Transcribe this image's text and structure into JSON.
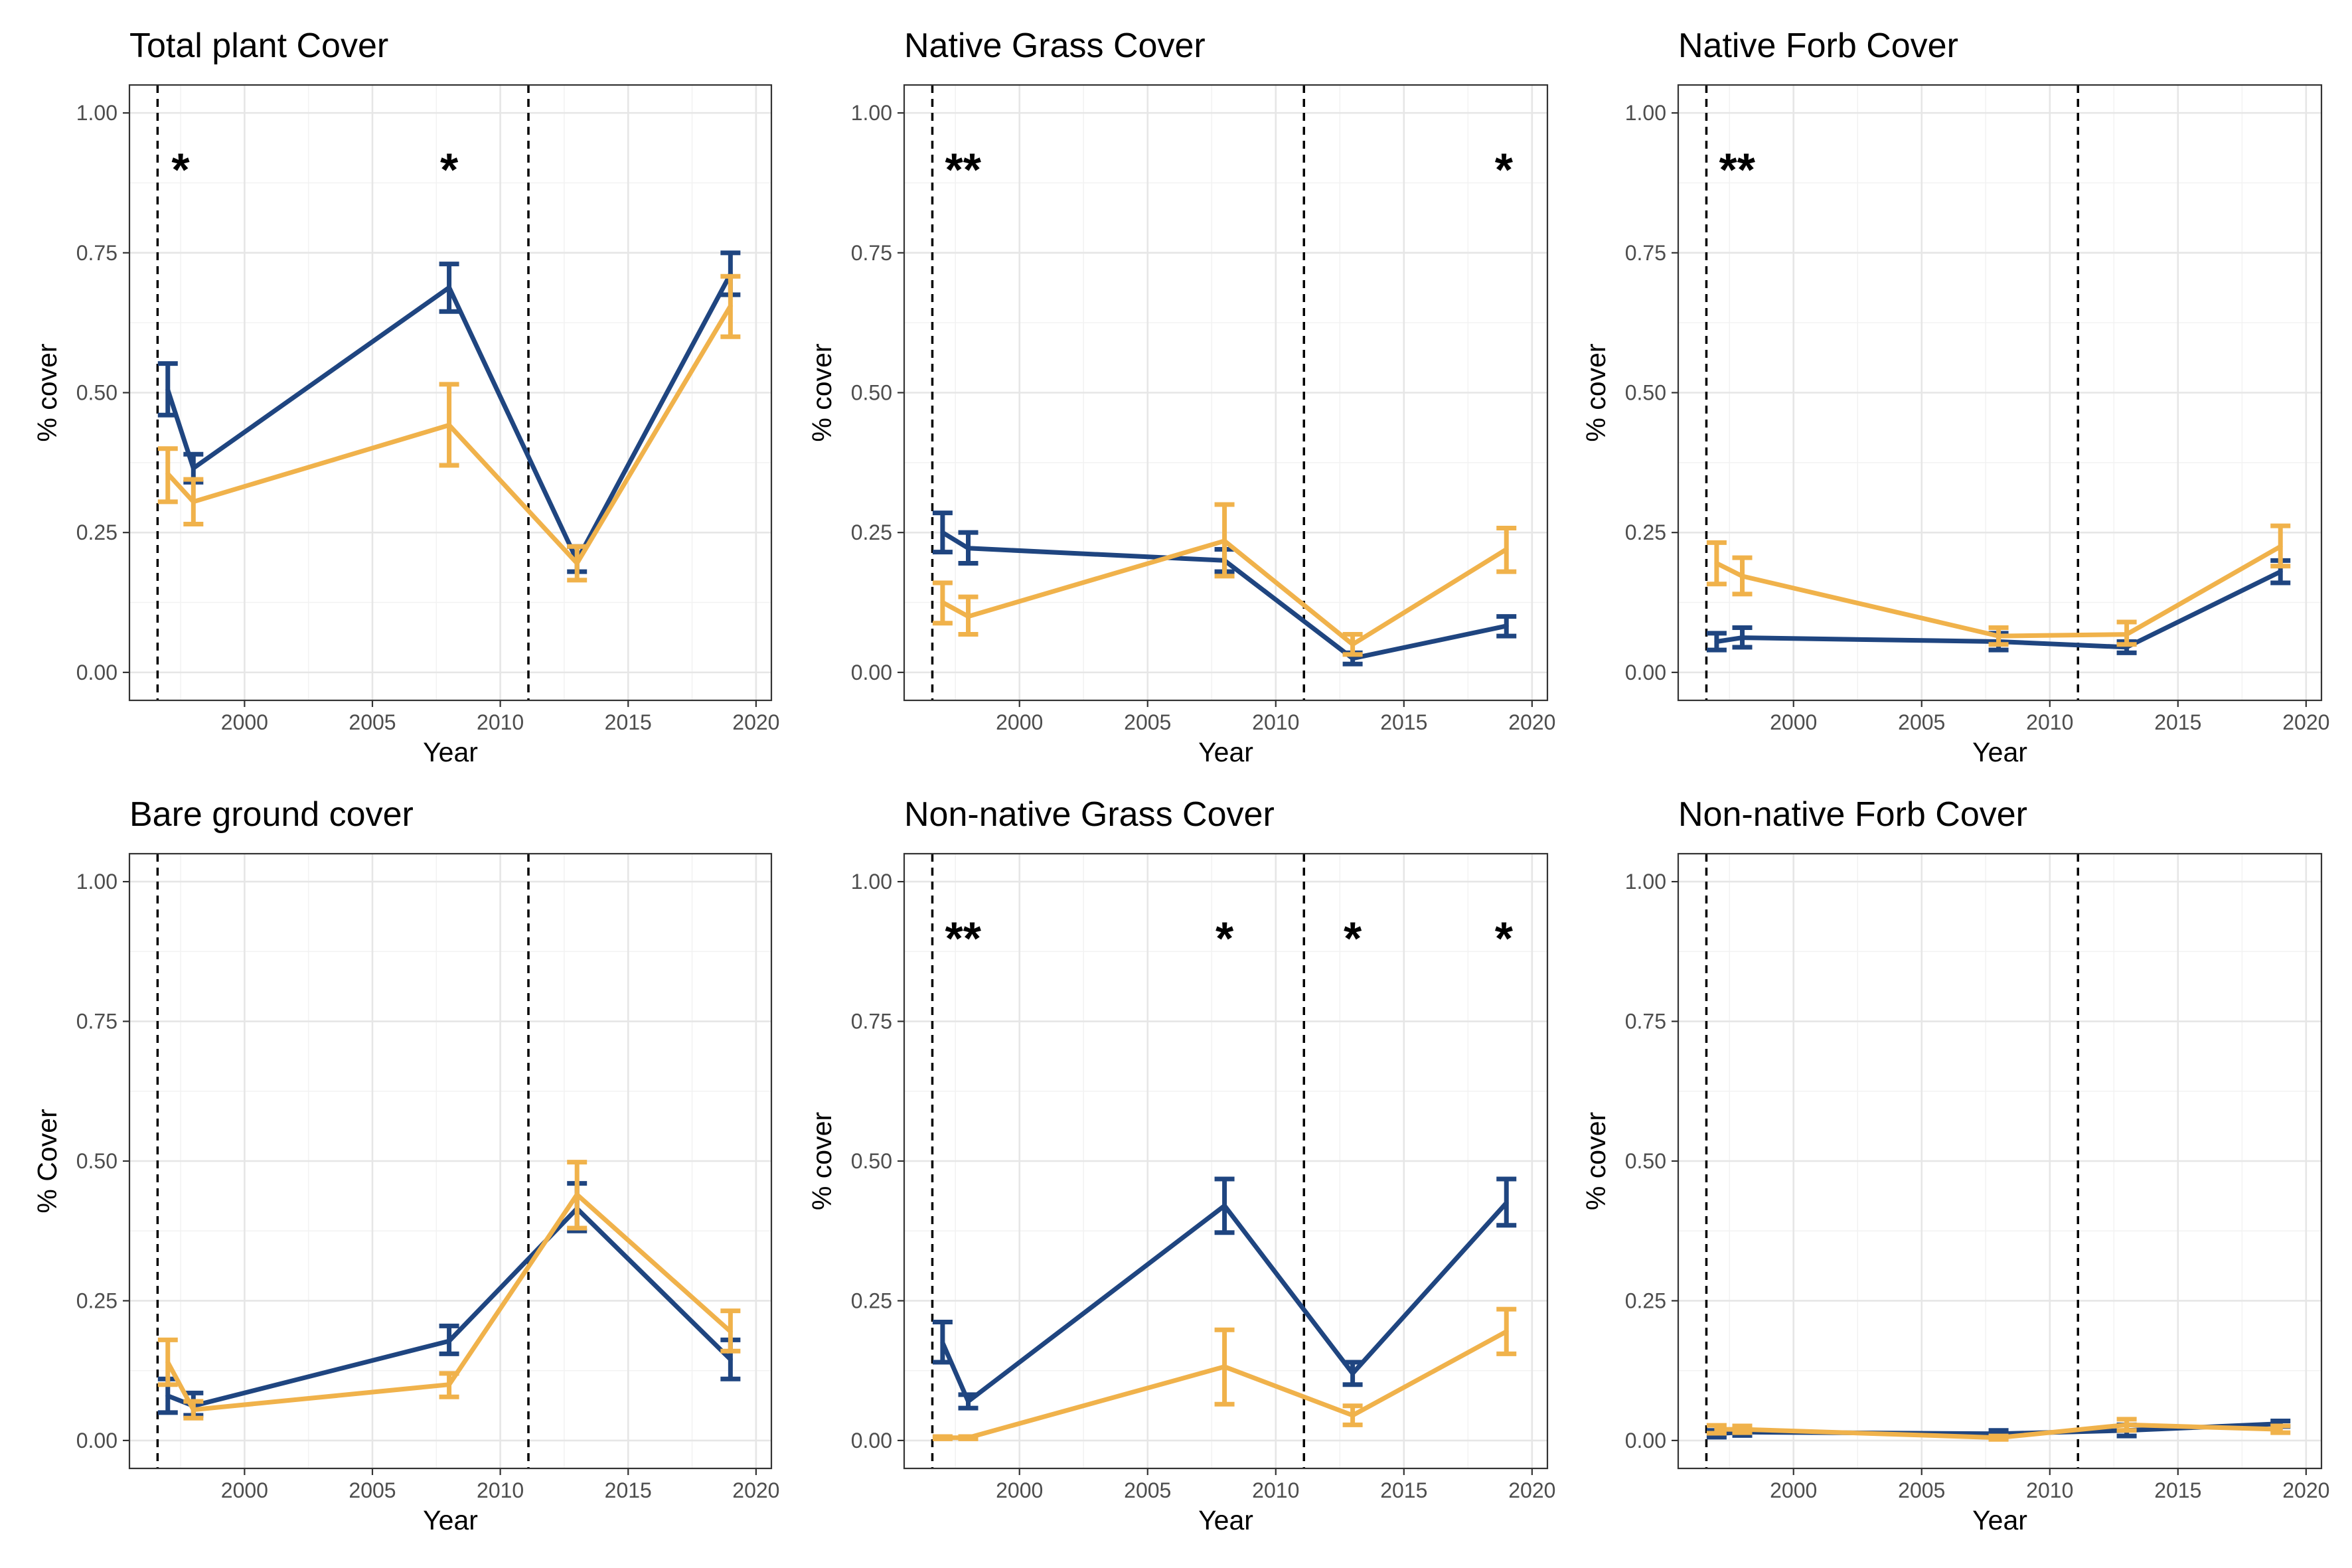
{
  "colors": {
    "blue": "#1f4580",
    "orange": "#f0b24b"
  },
  "chart_data": [
    {
      "type": "line",
      "title": "Total plant Cover",
      "xlabel": "Year",
      "ylabel": "% cover",
      "xlim": [
        1995.5,
        2020.6
      ],
      "ylim": [
        -0.05,
        1.05
      ],
      "xticks": [
        2000,
        2005,
        2010,
        2015,
        2020
      ],
      "yticks": [
        0.0,
        0.25,
        0.5,
        0.75,
        1.0
      ],
      "ytick_labels": [
        "0.00",
        "0.25",
        "0.50",
        "0.75",
        "1.00"
      ],
      "vlines": [
        1996.6,
        2011.1
      ],
      "annotations": [
        {
          "x": 1997.5,
          "text": "*"
        },
        {
          "x": 2008,
          "text": "*"
        }
      ],
      "x": [
        1997,
        1998,
        2008,
        2013,
        2019
      ],
      "series": [
        {
          "color": "#1f4580",
          "values": [
            0.505,
            0.365,
            0.688,
            0.2,
            0.712
          ],
          "lower": [
            0.46,
            0.34,
            0.645,
            0.18,
            0.675
          ],
          "upper": [
            0.552,
            0.39,
            0.73,
            0.225,
            0.75
          ]
        },
        {
          "color": "#f0b24b",
          "values": [
            0.355,
            0.305,
            0.442,
            0.195,
            0.655
          ],
          "lower": [
            0.305,
            0.265,
            0.37,
            0.165,
            0.6
          ],
          "upper": [
            0.4,
            0.345,
            0.515,
            0.225,
            0.708
          ]
        }
      ]
    },
    {
      "type": "line",
      "title": "Native Grass Cover",
      "xlabel": "Year",
      "ylabel": "% cover",
      "xlim": [
        1995.5,
        2020.6
      ],
      "ylim": [
        -0.05,
        1.05
      ],
      "xticks": [
        2000,
        2005,
        2010,
        2015,
        2020
      ],
      "yticks": [
        0.0,
        0.25,
        0.5,
        0.75,
        1.0
      ],
      "ytick_labels": [
        "0.00",
        "0.25",
        "0.50",
        "0.75",
        "1.00"
      ],
      "vlines": [
        1996.6,
        2011.1
      ],
      "annotations": [
        {
          "x": 1997.8,
          "text": "**"
        },
        {
          "x": 2018.9,
          "text": "*"
        }
      ],
      "x": [
        1997,
        1998,
        2008,
        2013,
        2019
      ],
      "series": [
        {
          "color": "#1f4580",
          "values": [
            0.25,
            0.222,
            0.2,
            0.025,
            0.083
          ],
          "lower": [
            0.215,
            0.195,
            0.18,
            0.015,
            0.065
          ],
          "upper": [
            0.285,
            0.25,
            0.22,
            0.035,
            0.1
          ]
        },
        {
          "color": "#f0b24b",
          "values": [
            0.125,
            0.1,
            0.235,
            0.05,
            0.22
          ],
          "lower": [
            0.088,
            0.068,
            0.172,
            0.032,
            0.18
          ],
          "upper": [
            0.16,
            0.135,
            0.3,
            0.068,
            0.258
          ]
        }
      ]
    },
    {
      "type": "line",
      "title": "Native Forb Cover",
      "xlabel": "Year",
      "ylabel": "% cover",
      "xlim": [
        1995.5,
        2020.6
      ],
      "ylim": [
        -0.05,
        1.05
      ],
      "xticks": [
        2000,
        2005,
        2010,
        2015,
        2020
      ],
      "yticks": [
        0.0,
        0.25,
        0.5,
        0.75,
        1.0
      ],
      "ytick_labels": [
        "0.00",
        "0.25",
        "0.50",
        "0.75",
        "1.00"
      ],
      "vlines": [
        1996.6,
        2011.1
      ],
      "annotations": [
        {
          "x": 1997.8,
          "text": "**"
        }
      ],
      "x": [
        1997,
        1998,
        2008,
        2013,
        2019
      ],
      "series": [
        {
          "color": "#1f4580",
          "values": [
            0.055,
            0.062,
            0.055,
            0.045,
            0.18
          ],
          "lower": [
            0.04,
            0.045,
            0.04,
            0.035,
            0.16
          ],
          "upper": [
            0.07,
            0.08,
            0.07,
            0.055,
            0.2
          ]
        },
        {
          "color": "#f0b24b",
          "values": [
            0.195,
            0.172,
            0.065,
            0.068,
            0.225
          ],
          "lower": [
            0.158,
            0.14,
            0.05,
            0.05,
            0.19
          ],
          "upper": [
            0.232,
            0.205,
            0.08,
            0.09,
            0.262
          ]
        }
      ]
    },
    {
      "type": "line",
      "title": "Bare ground cover",
      "xlabel": "Year",
      "ylabel": "% Cover",
      "xlim": [
        1995.5,
        2020.6
      ],
      "ylim": [
        -0.05,
        1.05
      ],
      "xticks": [
        2000,
        2005,
        2010,
        2015,
        2020
      ],
      "yticks": [
        0.0,
        0.25,
        0.5,
        0.75,
        1.0
      ],
      "ytick_labels": [
        "0.00",
        "0.25",
        "0.50",
        "0.75",
        "1.00"
      ],
      "vlines": [
        1996.6,
        2011.1
      ],
      "annotations": [],
      "x": [
        1997,
        1998,
        2008,
        2013,
        2019
      ],
      "series": [
        {
          "color": "#1f4580",
          "values": [
            0.08,
            0.062,
            0.178,
            0.415,
            0.145
          ],
          "lower": [
            0.05,
            0.045,
            0.155,
            0.375,
            0.11
          ],
          "upper": [
            0.11,
            0.085,
            0.205,
            0.46,
            0.18
          ]
        },
        {
          "color": "#f0b24b",
          "values": [
            0.14,
            0.055,
            0.1,
            0.44,
            0.195
          ],
          "lower": [
            0.1,
            0.04,
            0.078,
            0.38,
            0.16
          ],
          "upper": [
            0.18,
            0.07,
            0.12,
            0.498,
            0.232
          ]
        }
      ]
    },
    {
      "type": "line",
      "title": "Non-native Grass Cover",
      "xlabel": "Year",
      "ylabel": "% cover",
      "xlim": [
        1995.5,
        2020.6
      ],
      "ylim": [
        -0.05,
        1.05
      ],
      "xticks": [
        2000,
        2005,
        2010,
        2015,
        2020
      ],
      "yticks": [
        0.0,
        0.25,
        0.5,
        0.75,
        1.0
      ],
      "ytick_labels": [
        "0.00",
        "0.25",
        "0.50",
        "0.75",
        "1.00"
      ],
      "vlines": [
        1996.6,
        2011.1
      ],
      "annotations": [
        {
          "x": 1997.8,
          "text": "**"
        },
        {
          "x": 2008,
          "text": "*"
        },
        {
          "x": 2013,
          "text": "*"
        },
        {
          "x": 2018.9,
          "text": "*"
        }
      ],
      "x": [
        1997,
        1998,
        2008,
        2013,
        2019
      ],
      "series": [
        {
          "color": "#1f4580",
          "values": [
            0.175,
            0.07,
            0.42,
            0.12,
            0.425
          ],
          "lower": [
            0.14,
            0.058,
            0.372,
            0.1,
            0.385
          ],
          "upper": [
            0.212,
            0.082,
            0.468,
            0.14,
            0.468
          ]
        },
        {
          "color": "#f0b24b",
          "values": [
            0.005,
            0.005,
            0.132,
            0.045,
            0.195
          ],
          "lower": [
            0.003,
            0.003,
            0.065,
            0.028,
            0.155
          ],
          "upper": [
            0.007,
            0.007,
            0.198,
            0.062,
            0.235
          ]
        }
      ]
    },
    {
      "type": "line",
      "title": "Non-native Forb Cover",
      "xlabel": "Year",
      "ylabel": "% cover",
      "xlim": [
        1995.5,
        2020.6
      ],
      "ylim": [
        -0.05,
        1.05
      ],
      "xticks": [
        2000,
        2005,
        2010,
        2015,
        2020
      ],
      "yticks": [
        0.0,
        0.25,
        0.5,
        0.75,
        1.0
      ],
      "ytick_labels": [
        "0.00",
        "0.25",
        "0.50",
        "0.75",
        "1.00"
      ],
      "vlines": [
        1996.6,
        2011.1
      ],
      "annotations": [],
      "x": [
        1997,
        1998,
        2008,
        2013,
        2019
      ],
      "series": [
        {
          "color": "#1f4580",
          "values": [
            0.012,
            0.015,
            0.012,
            0.018,
            0.03
          ],
          "lower": [
            0.006,
            0.009,
            0.006,
            0.008,
            0.025
          ],
          "upper": [
            0.018,
            0.021,
            0.018,
            0.028,
            0.035
          ]
        },
        {
          "color": "#f0b24b",
          "values": [
            0.02,
            0.02,
            0.005,
            0.028,
            0.02
          ],
          "lower": [
            0.013,
            0.014,
            0.002,
            0.018,
            0.014
          ],
          "upper": [
            0.027,
            0.026,
            0.008,
            0.038,
            0.026
          ]
        }
      ]
    }
  ]
}
